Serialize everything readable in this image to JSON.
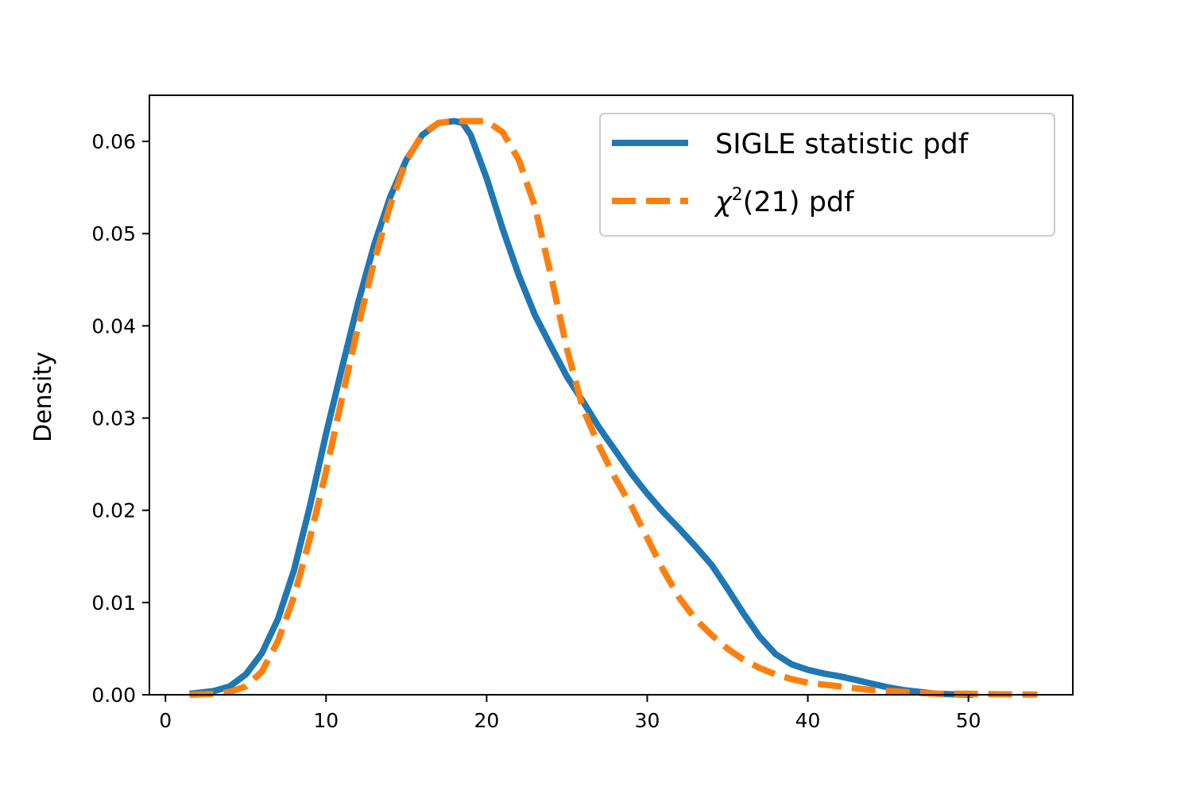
{
  "chart_data": {
    "type": "line",
    "title": "",
    "xlabel": "",
    "ylabel": "Density",
    "xlim": [
      -1,
      56.5
    ],
    "ylim": [
      0,
      0.065
    ],
    "xticks": [
      0,
      10,
      20,
      30,
      40,
      50
    ],
    "yticks": [
      0.0,
      0.01,
      0.02,
      0.03,
      0.04,
      0.05,
      0.06
    ],
    "xtick_labels": [
      "0",
      "10",
      "20",
      "30",
      "40",
      "50"
    ],
    "ytick_labels": [
      "0.00",
      "0.01",
      "0.02",
      "0.03",
      "0.04",
      "0.05",
      "0.06"
    ],
    "grid": false,
    "legend_position": "top-right",
    "series": [
      {
        "name": "SIGLE statistic pdf",
        "style": "solid",
        "color": "#1f77b4",
        "x": [
          1.5,
          3,
          4,
          5,
          6,
          7,
          8,
          9,
          10,
          11,
          12,
          13,
          14,
          15,
          16,
          17,
          18,
          18.5,
          19,
          20,
          21,
          22,
          23,
          24,
          25,
          26,
          27,
          28,
          29,
          30,
          31,
          32,
          33,
          34,
          35,
          36,
          37,
          38,
          39,
          40,
          41,
          42,
          43,
          44,
          45,
          46,
          47,
          48,
          49,
          50.3
        ],
        "y": [
          0.0001,
          0.0004,
          0.0009,
          0.0022,
          0.0045,
          0.0082,
          0.0135,
          0.0205,
          0.0283,
          0.0355,
          0.0425,
          0.0488,
          0.054,
          0.058,
          0.0607,
          0.062,
          0.0622,
          0.062,
          0.0607,
          0.056,
          0.0505,
          0.0455,
          0.0412,
          0.0378,
          0.0345,
          0.0318,
          0.029,
          0.0265,
          0.024,
          0.0218,
          0.0198,
          0.018,
          0.0161,
          0.0141,
          0.0115,
          0.0088,
          0.0063,
          0.0044,
          0.0033,
          0.0027,
          0.0023,
          0.002,
          0.0016,
          0.0012,
          0.0008,
          0.0005,
          0.0003,
          0.0001,
          5e-05,
          0.0
        ]
      },
      {
        "name": "χ²(21) pdf",
        "style": "dashed",
        "color": "#ff7f0e",
        "x": [
          1.5,
          3,
          4,
          5,
          6,
          7,
          8,
          9,
          10,
          11,
          12,
          13,
          14,
          15,
          16,
          17,
          18,
          19,
          20,
          21,
          22,
          23,
          24,
          25,
          26,
          27,
          28,
          29,
          30,
          31,
          32,
          33,
          34,
          35,
          36,
          37,
          38,
          39,
          40,
          41,
          42,
          43,
          44,
          45,
          46,
          47,
          48,
          50,
          52,
          54.3
        ],
        "y": [
          0.0,
          0.0001,
          0.0003,
          0.0009,
          0.0025,
          0.0058,
          0.0106,
          0.017,
          0.0242,
          0.0322,
          0.04,
          0.047,
          0.0531,
          0.0579,
          0.0608,
          0.062,
          0.0622,
          0.0622,
          0.0622,
          0.061,
          0.058,
          0.053,
          0.0455,
          0.0375,
          0.031,
          0.027,
          0.0235,
          0.0205,
          0.017,
          0.0135,
          0.0105,
          0.0082,
          0.0065,
          0.005,
          0.0038,
          0.0029,
          0.0022,
          0.0017,
          0.0013,
          0.0011,
          0.0009,
          0.0007,
          0.0005,
          0.0004,
          0.0003,
          0.0002,
          0.0001,
          0.0001,
          5e-05,
          2e-05
        ]
      }
    ]
  },
  "legend": {
    "items": [
      {
        "label": "SIGLE statistic pdf",
        "style": "solid",
        "color": "#1f77b4"
      },
      {
        "label_main": "χ",
        "label_sup": "2",
        "label_rest": "(21) pdf",
        "style": "dashed",
        "color": "#ff7f0e"
      }
    ]
  }
}
